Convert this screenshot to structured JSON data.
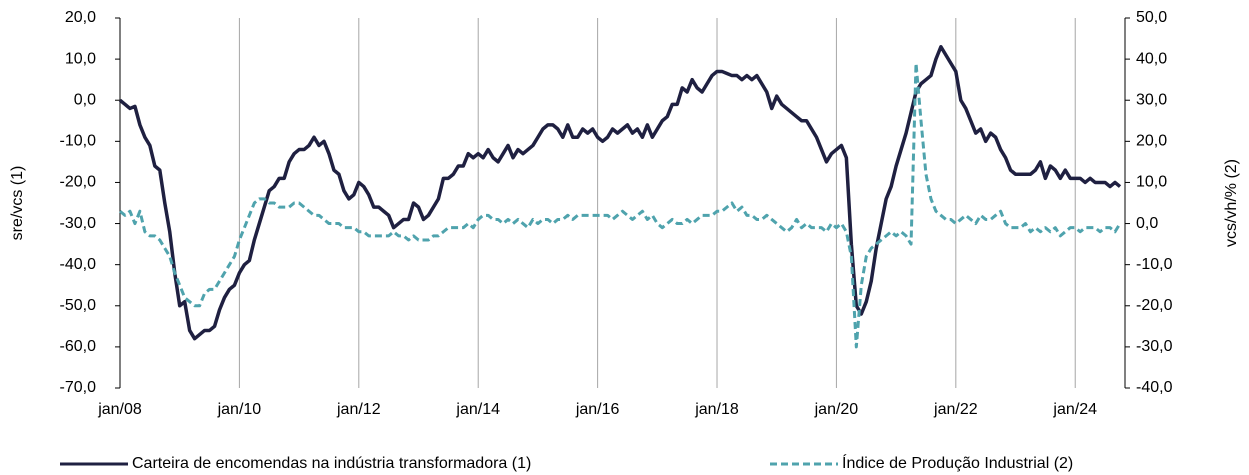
{
  "chart_data": {
    "type": "line",
    "categories": [
      "jan/08",
      null,
      null,
      null,
      null,
      null,
      null,
      null,
      null,
      null,
      null,
      null,
      null,
      null,
      null,
      null,
      null,
      null,
      null,
      null,
      null,
      null,
      null,
      null,
      "jan/10",
      null,
      null,
      null,
      null,
      null,
      null,
      null,
      null,
      null,
      null,
      null,
      null,
      null,
      null,
      null,
      null,
      null,
      null,
      null,
      null,
      null,
      null,
      null,
      "jan/12",
      null,
      null,
      null,
      null,
      null,
      null,
      null,
      null,
      null,
      null,
      null,
      null,
      null,
      null,
      null,
      null,
      null,
      null,
      null,
      null,
      null,
      null,
      null,
      "jan/14",
      null,
      null,
      null,
      null,
      null,
      null,
      null,
      null,
      null,
      null,
      null,
      null,
      null,
      null,
      null,
      null,
      null,
      null,
      null,
      null,
      null,
      null,
      null,
      "jan/16",
      null,
      null,
      null,
      null,
      null,
      null,
      null,
      null,
      null,
      null,
      null,
      null,
      null,
      null,
      null,
      null,
      null,
      null,
      null,
      null,
      null,
      null,
      null,
      "jan/18",
      null,
      null,
      null,
      null,
      null,
      null,
      null,
      null,
      null,
      null,
      null,
      null,
      null,
      null,
      null,
      null,
      null,
      null,
      null,
      null,
      null,
      null,
      null,
      "jan/20",
      null,
      null,
      null,
      null,
      null,
      null,
      null,
      null,
      null,
      null,
      null,
      null,
      null,
      null,
      null,
      null,
      null,
      null,
      null,
      null,
      null,
      null,
      null,
      "jan/22",
      null,
      null,
      null,
      null,
      null,
      null,
      null,
      null,
      null,
      null,
      null,
      null,
      null,
      null,
      null,
      null,
      null,
      null,
      null,
      null,
      null,
      null,
      null,
      "jan/24",
      null,
      null,
      null,
      null,
      null,
      null,
      null,
      null,
      null
    ],
    "series": [
      {
        "name": "Carteira de encomendas na indústria transformadora (1)",
        "color": "#1f2041",
        "dash": false,
        "axis": "y",
        "values": [
          0,
          -1,
          -2,
          -1.5,
          -6,
          -9,
          -11,
          -16,
          -17,
          -25,
          -32,
          -42,
          -50,
          -49,
          -56,
          -58,
          -57,
          -56,
          -56,
          -55,
          -51,
          -48,
          -46,
          -45,
          -42,
          -40,
          -39,
          -34,
          -30,
          -26,
          -22,
          -21,
          -19,
          -19,
          -15,
          -13,
          -12,
          -12,
          -11,
          -9,
          -11,
          -10,
          -13,
          -17,
          -18,
          -22,
          -24,
          -23,
          -20,
          -21,
          -23,
          -26,
          -26,
          -27,
          -28,
          -31,
          -30,
          -29,
          -29,
          -25,
          -26,
          -29,
          -28,
          -26,
          -24,
          -19,
          -19,
          -18,
          -16,
          -16,
          -13,
          -14,
          -13,
          -14,
          -12,
          -14,
          -15,
          -13,
          -11,
          -14,
          -12,
          -13,
          -12,
          -11,
          -9,
          -7,
          -6,
          -6,
          -7,
          -9,
          -6,
          -9,
          -9,
          -7,
          -8,
          -7,
          -9,
          -10,
          -9,
          -7,
          -8,
          -7,
          -6,
          -8,
          -7,
          -9,
          -6,
          -9,
          -7,
          -5,
          -4,
          -1,
          -1,
          3,
          2,
          5,
          3,
          2,
          4,
          6,
          7,
          7,
          6.5,
          6,
          6,
          5,
          6,
          5,
          6,
          4,
          2,
          -2,
          1,
          -1,
          -2,
          -3,
          -4,
          -5,
          -5,
          -7,
          -9,
          -12,
          -15,
          -13,
          -12,
          -11,
          -14,
          -35,
          -50,
          -52,
          -49,
          -44,
          -36,
          -30,
          -24,
          -21,
          -16,
          -12,
          -8,
          -3,
          2,
          4,
          5,
          6,
          10,
          13,
          11,
          9,
          7,
          0,
          -2,
          -5,
          -8,
          -7,
          -10,
          -8,
          -9,
          -12,
          -14,
          -17,
          -18,
          -18,
          -18,
          -18,
          -17,
          -15,
          -19,
          -16,
          -17,
          -19,
          -17,
          -19,
          -19,
          -19,
          -20,
          -19,
          -20,
          -20,
          -20,
          -21,
          -20,
          -21
        ]
      },
      {
        "name": "Índice de Produção Industrial (2)",
        "color": "#4fa3ad",
        "dash": true,
        "axis": "y2",
        "values": [
          3,
          2,
          3,
          0,
          3,
          -2,
          -3,
          -3,
          -4,
          -6,
          -8,
          -12,
          -15,
          -18,
          -19,
          -20,
          -20,
          -17,
          -16,
          -16,
          -14,
          -12,
          -10,
          -8,
          -4,
          -1,
          2,
          5,
          6,
          6,
          5,
          5,
          4,
          4,
          4,
          5,
          5,
          4,
          3,
          2,
          2,
          1,
          0,
          0,
          0,
          -1,
          -1,
          -1,
          -2,
          -2,
          -3,
          -3,
          -3,
          -3,
          -3,
          -2,
          -3,
          -3,
          -4,
          -3,
          -4,
          -4,
          -4,
          -3,
          -3,
          -2,
          -1,
          -1,
          -1,
          -1,
          0,
          -1,
          1,
          2,
          2,
          1,
          1,
          0,
          1,
          0,
          1,
          0,
          -1,
          1,
          0,
          1,
          1,
          0,
          1,
          1,
          2,
          1,
          2,
          2,
          2,
          2,
          2,
          2,
          2,
          1,
          2,
          3,
          2,
          1,
          2,
          3,
          1,
          2,
          0,
          -1,
          0,
          1,
          0,
          0,
          1,
          0,
          1,
          2,
          2,
          2,
          3,
          3,
          4,
          5,
          3,
          4,
          2,
          2,
          1,
          1,
          2,
          1,
          0,
          -1,
          -2,
          -1,
          1,
          -1,
          0,
          -1,
          -1,
          -1,
          -2,
          0,
          -1,
          0,
          -2,
          -8,
          -30,
          -15,
          -8,
          -6,
          -5,
          -4,
          -3,
          -2,
          -3,
          -2,
          -3,
          -5,
          39,
          25,
          12,
          6,
          3,
          2,
          1,
          1,
          0,
          1,
          2,
          1,
          0,
          2,
          1,
          1,
          2,
          3,
          0,
          -1,
          -1,
          -1,
          0,
          -2,
          -1,
          -2,
          -1,
          -2,
          -1,
          -3,
          -2,
          -1,
          -1,
          -2,
          -1,
          -1,
          -1,
          -2,
          -1,
          -1,
          -2,
          0
        ]
      }
    ],
    "y_label": "sre/vcs (1)",
    "y2_label": "vcs/vh/% (2)",
    "ylim": [
      -70,
      20
    ],
    "yticks": [
      {
        "value": -70,
        "label": "-70,0"
      },
      {
        "value": -60,
        "label": "-60,0"
      },
      {
        "value": -50,
        "label": "-50,0"
      },
      {
        "value": -40,
        "label": "-40,0"
      },
      {
        "value": -30,
        "label": "-30,0"
      },
      {
        "value": -20,
        "label": "-20,0"
      },
      {
        "value": -10,
        "label": "-10,0"
      },
      {
        "value": 0,
        "label": "0,0"
      },
      {
        "value": 10,
        "label": "10,0"
      },
      {
        "value": 20,
        "label": "20,0"
      }
    ],
    "y2lim": [
      -40,
      50
    ],
    "y2ticks": [
      {
        "value": -40,
        "label": "-40,0"
      },
      {
        "value": -30,
        "label": "-30,0"
      },
      {
        "value": -20,
        "label": "-20,0"
      },
      {
        "value": -10,
        "label": "-10,0"
      },
      {
        "value": 0,
        "label": "0,0"
      },
      {
        "value": 10,
        "label": "10,0"
      },
      {
        "value": 20,
        "label": "20,0"
      },
      {
        "value": 30,
        "label": "30,0"
      },
      {
        "value": 40,
        "label": "40,0"
      },
      {
        "value": 50,
        "label": "50,0"
      }
    ],
    "xgrid": true,
    "legend": "bottom"
  }
}
